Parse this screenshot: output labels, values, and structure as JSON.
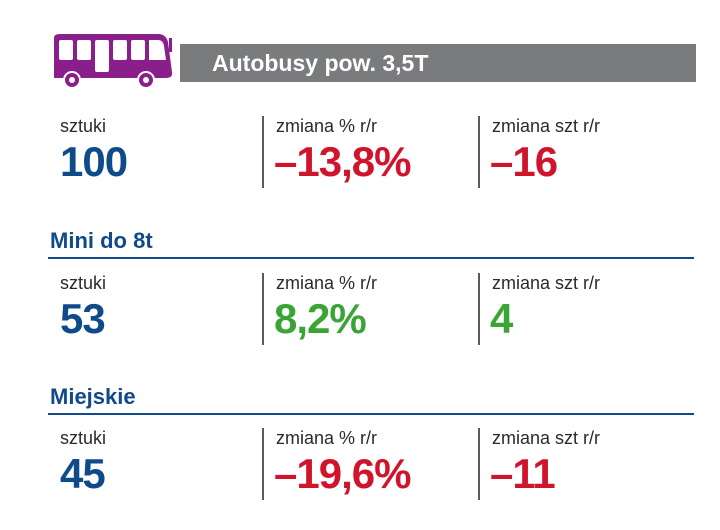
{
  "header": {
    "title": "Autobusy pow. 3,5T",
    "icon": "bus-icon",
    "icon_color": "#8a1f8c",
    "bar_color": "#7a7b7d"
  },
  "colors": {
    "blue": "#0f4a8a",
    "red": "#d0142c",
    "green": "#3aa535"
  },
  "sections": [
    {
      "title": "",
      "stats": [
        {
          "label": "sztuki",
          "value": "100",
          "color": "#0f4a8a"
        },
        {
          "label": "zmiana % r/r",
          "value": "–13,8%",
          "color": "#d0142c"
        },
        {
          "label": "zmiana szt r/r",
          "value": "–16",
          "color": "#d0142c"
        }
      ]
    },
    {
      "title": "Mini do 8t",
      "stats": [
        {
          "label": "sztuki",
          "value": "53",
          "color": "#0f4a8a"
        },
        {
          "label": "zmiana % r/r",
          "value": "8,2%",
          "color": "#3aa535"
        },
        {
          "label": "zmiana szt r/r",
          "value": "4",
          "color": "#3aa535"
        }
      ]
    },
    {
      "title": "Miejskie",
      "stats": [
        {
          "label": "sztuki",
          "value": "45",
          "color": "#0f4a8a"
        },
        {
          "label": "zmiana % r/r",
          "value": "–19,6%",
          "color": "#d0142c"
        },
        {
          "label": "zmiana szt r/r",
          "value": "–11",
          "color": "#d0142c"
        }
      ]
    }
  ]
}
